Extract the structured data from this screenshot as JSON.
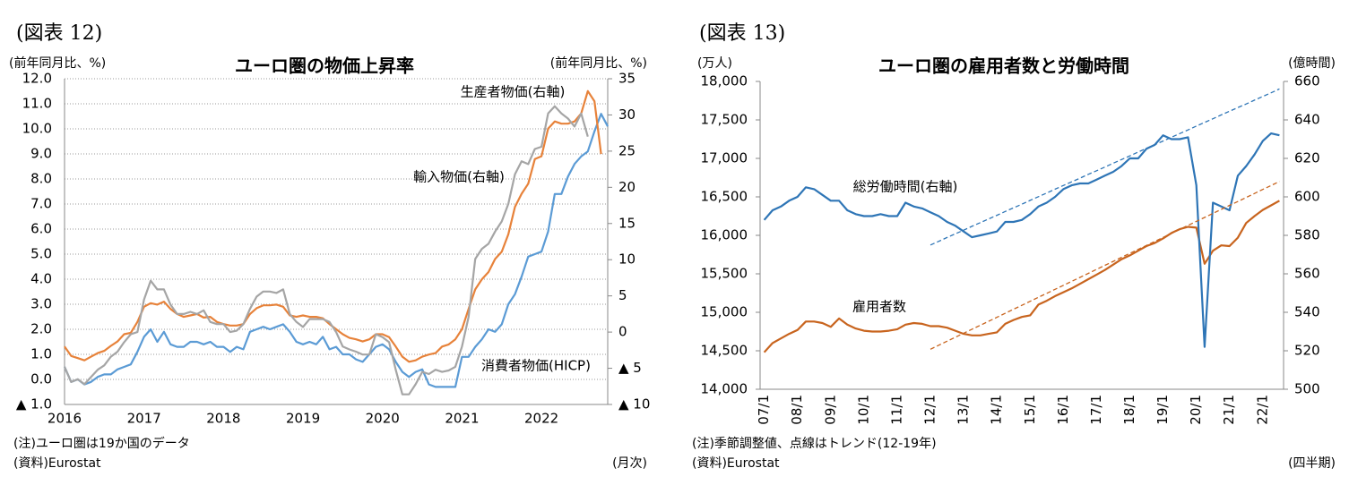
{
  "chart_data": [
    {
      "type": "line",
      "figure_label": "(図表 12)",
      "title": "ユーロ圏の物価上昇率",
      "y_label": "(前年同月比、%)",
      "y2_label": "(前年同月比、%)",
      "note": "(注)ユーロ圏は19か国のデータ",
      "source": "(資料)Eurostat",
      "x_unit": "(月次)",
      "categories": [
        "2016",
        null,
        null,
        null,
        null,
        null,
        null,
        null,
        null,
        null,
        null,
        null,
        "2017",
        null,
        null,
        null,
        null,
        null,
        null,
        null,
        null,
        null,
        null,
        null,
        "2018",
        null,
        null,
        null,
        null,
        null,
        null,
        null,
        null,
        null,
        null,
        null,
        "2019",
        null,
        null,
        null,
        null,
        null,
        null,
        null,
        null,
        null,
        null,
        null,
        "2020",
        null,
        null,
        null,
        null,
        null,
        null,
        null,
        null,
        null,
        null,
        null,
        "2021",
        null,
        null,
        null,
        null,
        null,
        null,
        null,
        null,
        null,
        null,
        null,
        "2022",
        null,
        null,
        null,
        null,
        null,
        null,
        null,
        null,
        null,
        null
      ],
      "ylim": [
        -1,
        12
      ],
      "yticks": [
        {
          "value": 12,
          "label": "12.0"
        },
        {
          "value": 11,
          "label": "11.0"
        },
        {
          "value": 10,
          "label": "10.0"
        },
        {
          "value": 9,
          "label": "9.0"
        },
        {
          "value": 8,
          "label": "8.0"
        },
        {
          "value": 7,
          "label": "7.0"
        },
        {
          "value": 6,
          "label": "6.0"
        },
        {
          "value": 5,
          "label": "5.0"
        },
        {
          "value": 4,
          "label": "4.0"
        },
        {
          "value": 3,
          "label": "3.0"
        },
        {
          "value": 2,
          "label": "2.0"
        },
        {
          "value": 1,
          "label": "1.0"
        },
        {
          "value": 0,
          "label": "0.0"
        },
        {
          "value": -1,
          "label": "▲ 1.0"
        }
      ],
      "y2lim": [
        -10,
        35
      ],
      "y2ticks": [
        35,
        30,
        25,
        20,
        15,
        10,
        5,
        0,
        {
          "value": -5,
          "label": "▲ 5"
        },
        {
          "value": -10,
          "label": "▲ 10"
        }
      ],
      "grid": true,
      "series": [
        {
          "name": "消費者物価(HICP)",
          "color": "#5b9bd5",
          "values": [
            0.5,
            -0.1,
            0.0,
            -0.2,
            -0.1,
            0.1,
            0.2,
            0.2,
            0.4,
            0.5,
            0.6,
            1.1,
            1.7,
            2.0,
            1.5,
            1.9,
            1.4,
            1.3,
            1.3,
            1.5,
            1.5,
            1.4,
            1.5,
            1.3,
            1.3,
            1.1,
            1.3,
            1.2,
            1.9,
            2.0,
            2.1,
            2.0,
            2.1,
            2.2,
            1.9,
            1.5,
            1.4,
            1.5,
            1.4,
            1.7,
            1.2,
            1.3,
            1.0,
            1.0,
            0.8,
            0.7,
            1.0,
            1.3,
            1.4,
            1.2,
            0.7,
            0.3,
            0.1,
            0.3,
            0.4,
            -0.2,
            -0.3,
            -0.3,
            -0.3,
            -0.3,
            0.9,
            0.9,
            1.3,
            1.6,
            2.0,
            1.9,
            2.2,
            3.0,
            3.4,
            4.1,
            4.9,
            5.0,
            5.1,
            5.9,
            7.4,
            7.4,
            8.1,
            8.6,
            8.9,
            9.1,
            9.9,
            10.6,
            10.1
          ]
        },
        {
          "name": "生産者物価(右軸)",
          "color": "#e7823a",
          "axis": "y2",
          "values": [
            -2.0,
            -3.3,
            -3.6,
            -3.9,
            -3.4,
            -2.9,
            -2.6,
            -1.9,
            -1.3,
            -0.3,
            -0.1,
            1.4,
            3.5,
            4.0,
            3.8,
            4.2,
            3.2,
            2.5,
            2.1,
            2.3,
            2.5,
            2.0,
            2.1,
            1.4,
            1.1,
            0.9,
            0.9,
            1.1,
            2.5,
            3.3,
            3.7,
            3.7,
            3.8,
            3.5,
            2.3,
            2.1,
            2.3,
            2.1,
            2.1,
            1.9,
            1.1,
            0.4,
            -0.3,
            -0.8,
            -1.0,
            -1.3,
            -1.0,
            -0.3,
            -0.3,
            -0.7,
            -2.0,
            -3.4,
            -4.1,
            -3.9,
            -3.4,
            -3.1,
            -2.9,
            -2.0,
            -1.7,
            -1.0,
            0.4,
            3.2,
            5.9,
            7.3,
            8.3,
            10.1,
            11.1,
            13.5,
            17.3,
            19.1,
            20.5,
            23.9,
            24.3,
            28.1,
            29.1,
            28.8,
            28.8,
            29.1,
            30.2,
            33.3,
            31.9,
            24.6,
            null
          ]
        },
        {
          "name": "輸入物価(右軸)",
          "color": "#a5a5a5",
          "axis": "y2",
          "values": [
            -4.8,
            -6.9,
            -6.5,
            -7.2,
            -6.2,
            -5.2,
            -4.6,
            -3.4,
            -2.7,
            -1.4,
            -0.3,
            0.0,
            4.5,
            7.1,
            5.9,
            5.9,
            3.8,
            2.5,
            2.5,
            2.8,
            2.5,
            3.0,
            1.4,
            1.1,
            1.1,
            0.0,
            0.2,
            1.1,
            3.2,
            4.9,
            5.6,
            5.6,
            5.4,
            5.9,
            2.5,
            1.4,
            0.7,
            1.8,
            1.8,
            1.8,
            1.4,
            0.0,
            -2.0,
            -2.4,
            -2.7,
            -3.1,
            -3.1,
            -0.3,
            -0.7,
            -1.4,
            -5.2,
            -8.6,
            -8.6,
            -7.2,
            -5.5,
            -5.8,
            -5.2,
            -5.5,
            -5.3,
            -4.8,
            -2.0,
            2.1,
            10.1,
            11.5,
            12.2,
            13.9,
            15.3,
            17.7,
            21.8,
            23.6,
            23.2,
            25.3,
            25.6,
            30.2,
            31.2,
            30.2,
            29.5,
            28.4,
            30.2,
            27.0,
            null,
            null,
            null
          ]
        }
      ]
    },
    {
      "type": "line",
      "figure_label": "(図表 13)",
      "title": "ユーロ圏の雇用者数と労働時間",
      "y_label": "(万人)",
      "y2_label": "(億時間)",
      "note": "(注)季節調整値、点線はトレンド(12-19年)",
      "source": "(資料)Eurostat",
      "x_unit": "(四半期)",
      "categories": [
        "07/1",
        null,
        null,
        null,
        "08/1",
        null,
        null,
        null,
        "09/1",
        null,
        null,
        null,
        "10/1",
        null,
        null,
        null,
        "11/1",
        null,
        null,
        null,
        "12/1",
        null,
        null,
        null,
        "13/1",
        null,
        null,
        null,
        "14/1",
        null,
        null,
        null,
        "15/1",
        null,
        null,
        null,
        "16/1",
        null,
        null,
        null,
        "17/1",
        null,
        null,
        null,
        "18/1",
        null,
        null,
        null,
        "19/1",
        null,
        null,
        null,
        "20/1",
        null,
        null,
        null,
        "21/1",
        null,
        null,
        null,
        "22/1",
        null,
        null
      ],
      "ylim": [
        14000,
        18000
      ],
      "yticks": [
        {
          "value": 18000,
          "label": "18,000"
        },
        {
          "value": 17500,
          "label": "17,500"
        },
        {
          "value": 17000,
          "label": "17,000"
        },
        {
          "value": 16500,
          "label": "16,500"
        },
        {
          "value": 16000,
          "label": "16,000"
        },
        {
          "value": 15500,
          "label": "15,500"
        },
        {
          "value": 15000,
          "label": "15,000"
        },
        {
          "value": 14500,
          "label": "14,500"
        },
        {
          "value": 14000,
          "label": "14,000"
        }
      ],
      "y2lim": [
        500,
        660
      ],
      "y2ticks": [
        660,
        640,
        620,
        600,
        580,
        560,
        540,
        520,
        500
      ],
      "grid": false,
      "series": [
        {
          "name": "雇用者数",
          "color": "#c8641e",
          "values": [
            14480,
            14600,
            14660,
            14720,
            14770,
            14880,
            14880,
            14860,
            14810,
            14920,
            14840,
            14790,
            14760,
            14750,
            14750,
            14760,
            14780,
            14840,
            14860,
            14850,
            14820,
            14820,
            14800,
            14760,
            14720,
            14700,
            14700,
            14720,
            14740,
            14850,
            14900,
            14940,
            14960,
            15100,
            15150,
            15210,
            15260,
            15310,
            15370,
            15430,
            15490,
            15550,
            15620,
            15690,
            15740,
            15800,
            15860,
            15900,
            15960,
            16030,
            16080,
            16110,
            16100,
            15630,
            15800,
            15870,
            15860,
            15970,
            16160,
            16250,
            16330,
            16390,
            16450
          ]
        },
        {
          "name": "総労働時間(右軸)",
          "color": "#2e75b6",
          "axis": "y2",
          "values": [
            588,
            593,
            595,
            598,
            600,
            605,
            604,
            601,
            598,
            598,
            593,
            591,
            590,
            590,
            591,
            590,
            590,
            597,
            595,
            594,
            592,
            590,
            587,
            585,
            582,
            579,
            580,
            581,
            582,
            587,
            587,
            588,
            591,
            595,
            597,
            600,
            604,
            606,
            607,
            607,
            609,
            611,
            613,
            616,
            620,
            620,
            625,
            627,
            632,
            630,
            630,
            631,
            606,
            522,
            597,
            595,
            593,
            611,
            616,
            622,
            629,
            633,
            632
          ]
        },
        {
          "color": "#c8641e",
          "dash": true,
          "values": [
            null,
            null,
            null,
            null,
            null,
            null,
            null,
            null,
            null,
            null,
            null,
            null,
            null,
            null,
            null,
            null,
            null,
            null,
            null,
            null,
            14520,
            14572,
            14624,
            14676,
            14728,
            14780,
            14831,
            14883,
            14935,
            14987,
            15039,
            15091,
            15143,
            15195,
            15247,
            15299,
            15350,
            15402,
            15454,
            15506,
            15558,
            15610,
            15662,
            15714,
            15766,
            15818,
            15869,
            15921,
            15973,
            16025,
            16077,
            16129,
            16181,
            16233,
            16285,
            16337,
            16389,
            16440,
            16492,
            16544,
            16596,
            16648,
            16700
          ]
        },
        {
          "color": "#2e75b6",
          "dash": true,
          "axis": "y2",
          "values": [
            null,
            null,
            null,
            null,
            null,
            null,
            null,
            null,
            null,
            null,
            null,
            null,
            null,
            null,
            null,
            null,
            null,
            null,
            null,
            null,
            575,
            576.9,
            578.9,
            580.8,
            582.7,
            584.7,
            586.6,
            588.5,
            590.4,
            592.4,
            594.3,
            596.2,
            598.2,
            600.1,
            602.0,
            604.0,
            605.9,
            607.8,
            609.7,
            611.7,
            613.6,
            615.5,
            617.5,
            619.4,
            621.3,
            623.3,
            625.2,
            627.1,
            629.0,
            631.0,
            632.9,
            634.8,
            636.8,
            638.7,
            640.6,
            642.6,
            644.5,
            646.4,
            648.3,
            650.3,
            652.2,
            654.1,
            656.1
          ]
        }
      ]
    }
  ]
}
